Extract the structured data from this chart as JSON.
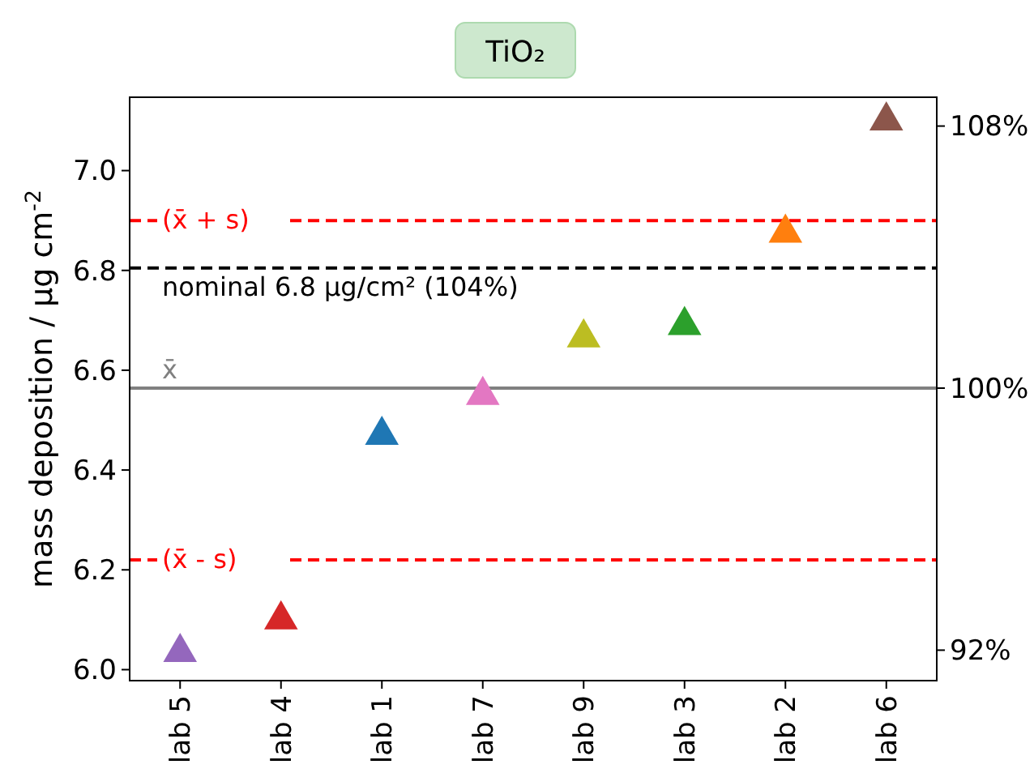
{
  "chart_data": {
    "type": "scatter",
    "title": "TiO₂",
    "ylabel": "mass deposition / µg cm$^{-2}$",
    "categories": [
      "lab 5",
      "lab 4",
      "lab 1",
      "lab 7",
      "lab 9",
      "lab 3",
      "lab 2",
      "lab 6"
    ],
    "series": [
      {
        "values": [
          6.035,
          6.1,
          6.47,
          6.55,
          6.665,
          6.69,
          6.875,
          7.1
        ],
        "colors": [
          "#9467bd",
          "#d62728",
          "#1f77b4",
          "#e377c2",
          "#bcbd22",
          "#2ca02c",
          "#ff7f0e",
          "#8c564b"
        ]
      }
    ],
    "marker": "triangle",
    "grid": false,
    "ylim": [
      5.978,
      7.147
    ],
    "yticks": [
      {
        "value": 6,
        "label": "6.0"
      },
      6.2,
      6.4,
      6.6,
      6.8,
      {
        "value": 7,
        "label": "7.0"
      }
    ],
    "y2lim": [
      91.07,
      108.88
    ],
    "y2ticks": [
      {
        "value": 92,
        "label": "92%"
      },
      {
        "value": 100,
        "label": "100%"
      },
      {
        "value": 108,
        "label": "108%"
      }
    ],
    "ref_lines": [
      {
        "axis": "y",
        "value": 6.9,
        "label": "(x̄ + s)",
        "color": "#ff0000",
        "line_style": "dashed"
      },
      {
        "axis": "y",
        "value": 6.805,
        "label": "nominal 6.8 µg/cm² (104%)",
        "color": "#000000",
        "line_style": "dashed"
      },
      {
        "axis": "y",
        "value": 6.564,
        "label": "x̄",
        "color": "#808080",
        "line_style": "solid"
      },
      {
        "axis": "y",
        "value": 6.22,
        "label": "(x̄ - s)",
        "color": "#ff0000",
        "line_style": "dashed"
      }
    ]
  }
}
